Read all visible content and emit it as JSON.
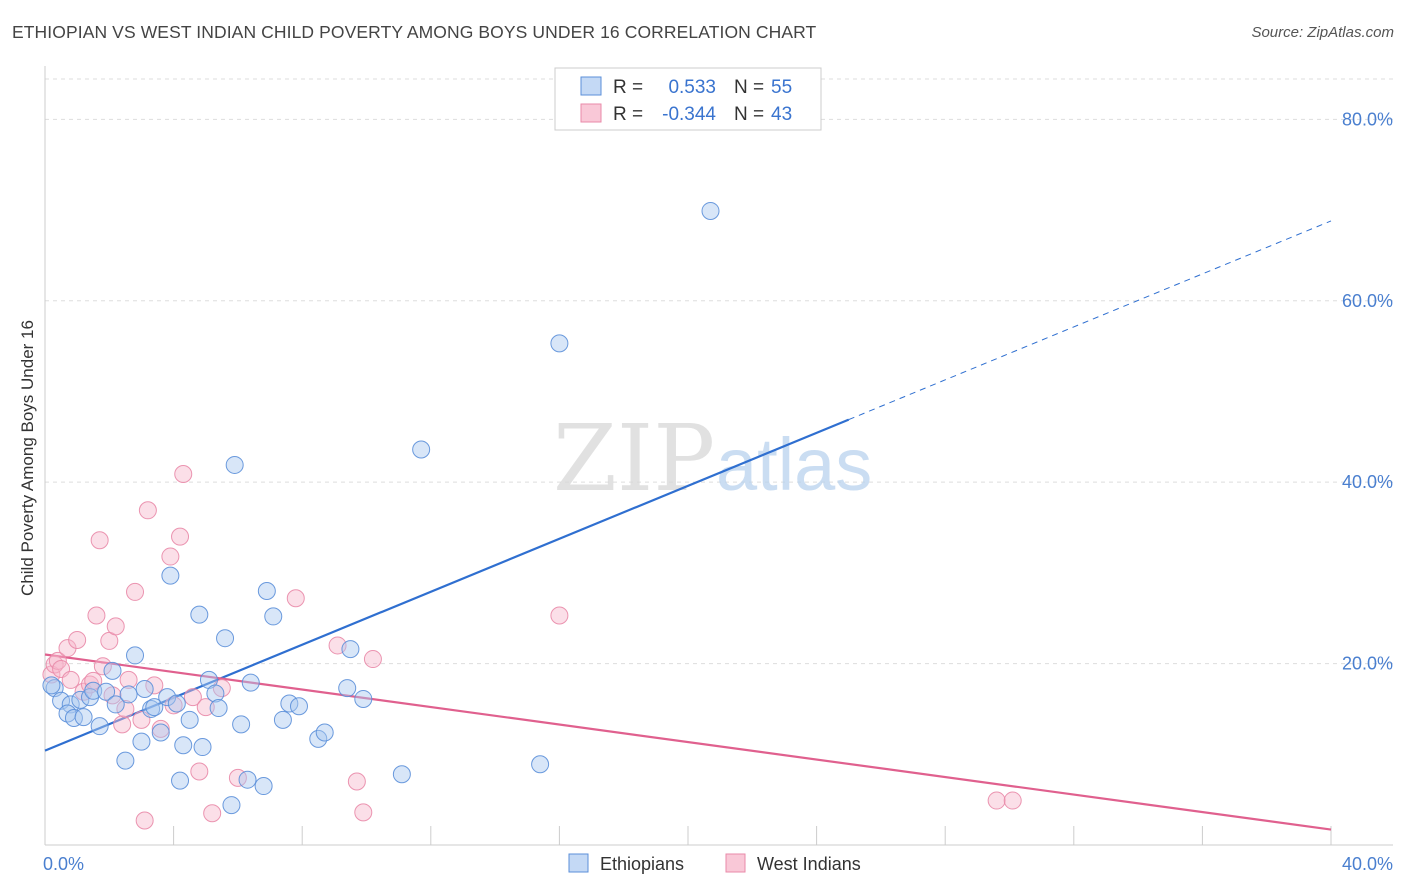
{
  "header": {
    "title": "ETHIOPIAN VS WEST INDIAN CHILD POVERTY AMONG BOYS UNDER 16 CORRELATION CHART",
    "source": "Source: ZipAtlas.com"
  },
  "watermark": {
    "zip": "ZIP",
    "atlas": "atlas"
  },
  "legend_box": {
    "rows": [
      {
        "r_label": "R =",
        "r_value": "0.533",
        "n_label": "N =",
        "n_value": "55"
      },
      {
        "r_label": "R =",
        "r_value": "-0.344",
        "n_label": "N =",
        "n_value": "43"
      }
    ]
  },
  "chart_data": {
    "type": "scatter",
    "title": "ETHIOPIAN VS WEST INDIAN CHILD POVERTY AMONG BOYS UNDER 16 CORRELATION CHART",
    "xlabel": "",
    "ylabel": "Child Poverty Among Boys Under 16",
    "xlim": [
      0,
      40
    ],
    "ylim": [
      0,
      85
    ],
    "x_tick_labels": [
      "0.0%",
      "40.0%"
    ],
    "y_ticks": [
      20,
      40,
      60,
      80
    ],
    "y_tick_labels": [
      "20.0%",
      "40.0%",
      "60.0%",
      "80.0%"
    ],
    "grid": true,
    "legend_position": "bottom-center",
    "colors": {
      "Ethiopians": "#5b8fd9",
      "West Indians": "#e98aa8",
      "Ethiopians_line": "#2f6fd0",
      "West Indians_line": "#e0608e"
    },
    "series": [
      {
        "name": "Ethiopians",
        "r": 0.533,
        "n": 55,
        "trend": {
          "x": [
            0,
            25
          ],
          "y": [
            10.4,
            46.9
          ],
          "dashed_extension_to": [
            40,
            68.8
          ]
        },
        "points": [
          [
            0.3,
            17.3
          ],
          [
            0.5,
            15.9
          ],
          [
            0.8,
            15.5
          ],
          [
            0.7,
            14.5
          ],
          [
            0.9,
            14.0
          ],
          [
            1.1,
            16.0
          ],
          [
            1.2,
            14.1
          ],
          [
            1.4,
            16.3
          ],
          [
            1.5,
            17.0
          ],
          [
            1.7,
            13.1
          ],
          [
            1.9,
            16.9
          ],
          [
            2.1,
            19.2
          ],
          [
            2.2,
            15.5
          ],
          [
            2.5,
            9.3
          ],
          [
            2.6,
            16.6
          ],
          [
            2.8,
            20.9
          ],
          [
            3.0,
            11.4
          ],
          [
            3.1,
            17.2
          ],
          [
            3.3,
            15.0
          ],
          [
            3.4,
            15.2
          ],
          [
            3.6,
            12.4
          ],
          [
            3.8,
            16.3
          ],
          [
            3.9,
            29.7
          ],
          [
            4.1,
            15.6
          ],
          [
            4.2,
            7.1
          ],
          [
            4.3,
            11.0
          ],
          [
            4.5,
            13.8
          ],
          [
            4.8,
            25.4
          ],
          [
            4.9,
            10.8
          ],
          [
            5.1,
            18.2
          ],
          [
            5.3,
            16.7
          ],
          [
            5.4,
            15.1
          ],
          [
            5.6,
            22.8
          ],
          [
            5.8,
            4.4
          ],
          [
            5.9,
            41.9
          ],
          [
            6.1,
            13.3
          ],
          [
            6.3,
            7.2
          ],
          [
            6.4,
            17.9
          ],
          [
            6.8,
            6.5
          ],
          [
            6.9,
            28.0
          ],
          [
            7.1,
            25.2
          ],
          [
            7.4,
            13.8
          ],
          [
            7.6,
            15.6
          ],
          [
            7.9,
            15.3
          ],
          [
            8.5,
            11.7
          ],
          [
            8.7,
            12.4
          ],
          [
            9.4,
            17.3
          ],
          [
            9.5,
            21.6
          ],
          [
            9.9,
            16.1
          ],
          [
            11.1,
            7.8
          ],
          [
            11.7,
            43.6
          ],
          [
            15.4,
            8.9
          ],
          [
            16.0,
            55.3
          ],
          [
            20.7,
            69.9
          ],
          [
            0.2,
            17.6
          ]
        ]
      },
      {
        "name": "West Indians",
        "r": -0.344,
        "n": 43,
        "trend": {
          "x": [
            0,
            40
          ],
          "y": [
            21.0,
            1.7
          ]
        },
        "points": [
          [
            0.2,
            18.8
          ],
          [
            0.3,
            19.9
          ],
          [
            0.4,
            20.3
          ],
          [
            0.5,
            19.4
          ],
          [
            0.7,
            21.7
          ],
          [
            0.8,
            18.2
          ],
          [
            1.0,
            22.6
          ],
          [
            1.2,
            16.9
          ],
          [
            1.4,
            17.7
          ],
          [
            1.5,
            18.1
          ],
          [
            1.6,
            25.3
          ],
          [
            1.7,
            33.6
          ],
          [
            1.8,
            19.7
          ],
          [
            2.0,
            22.5
          ],
          [
            2.1,
            16.5
          ],
          [
            2.2,
            24.1
          ],
          [
            2.4,
            13.3
          ],
          [
            2.5,
            15.0
          ],
          [
            2.6,
            18.2
          ],
          [
            2.8,
            27.9
          ],
          [
            3.0,
            13.8
          ],
          [
            3.1,
            2.7
          ],
          [
            3.2,
            36.9
          ],
          [
            3.4,
            17.6
          ],
          [
            3.6,
            12.8
          ],
          [
            3.9,
            31.8
          ],
          [
            4.0,
            15.4
          ],
          [
            4.2,
            34.0
          ],
          [
            4.3,
            40.9
          ],
          [
            4.6,
            16.3
          ],
          [
            4.8,
            8.1
          ],
          [
            5.0,
            15.2
          ],
          [
            5.2,
            3.5
          ],
          [
            5.5,
            17.3
          ],
          [
            6.0,
            7.4
          ],
          [
            7.8,
            27.2
          ],
          [
            9.1,
            22.0
          ],
          [
            9.7,
            7.0
          ],
          [
            9.9,
            3.6
          ],
          [
            10.2,
            20.5
          ],
          [
            16.0,
            25.3
          ],
          [
            29.6,
            4.9
          ],
          [
            30.1,
            4.9
          ]
        ]
      }
    ]
  },
  "bottom_legend": {
    "items": [
      {
        "label": "Ethiopians"
      },
      {
        "label": "West Indians"
      }
    ]
  }
}
